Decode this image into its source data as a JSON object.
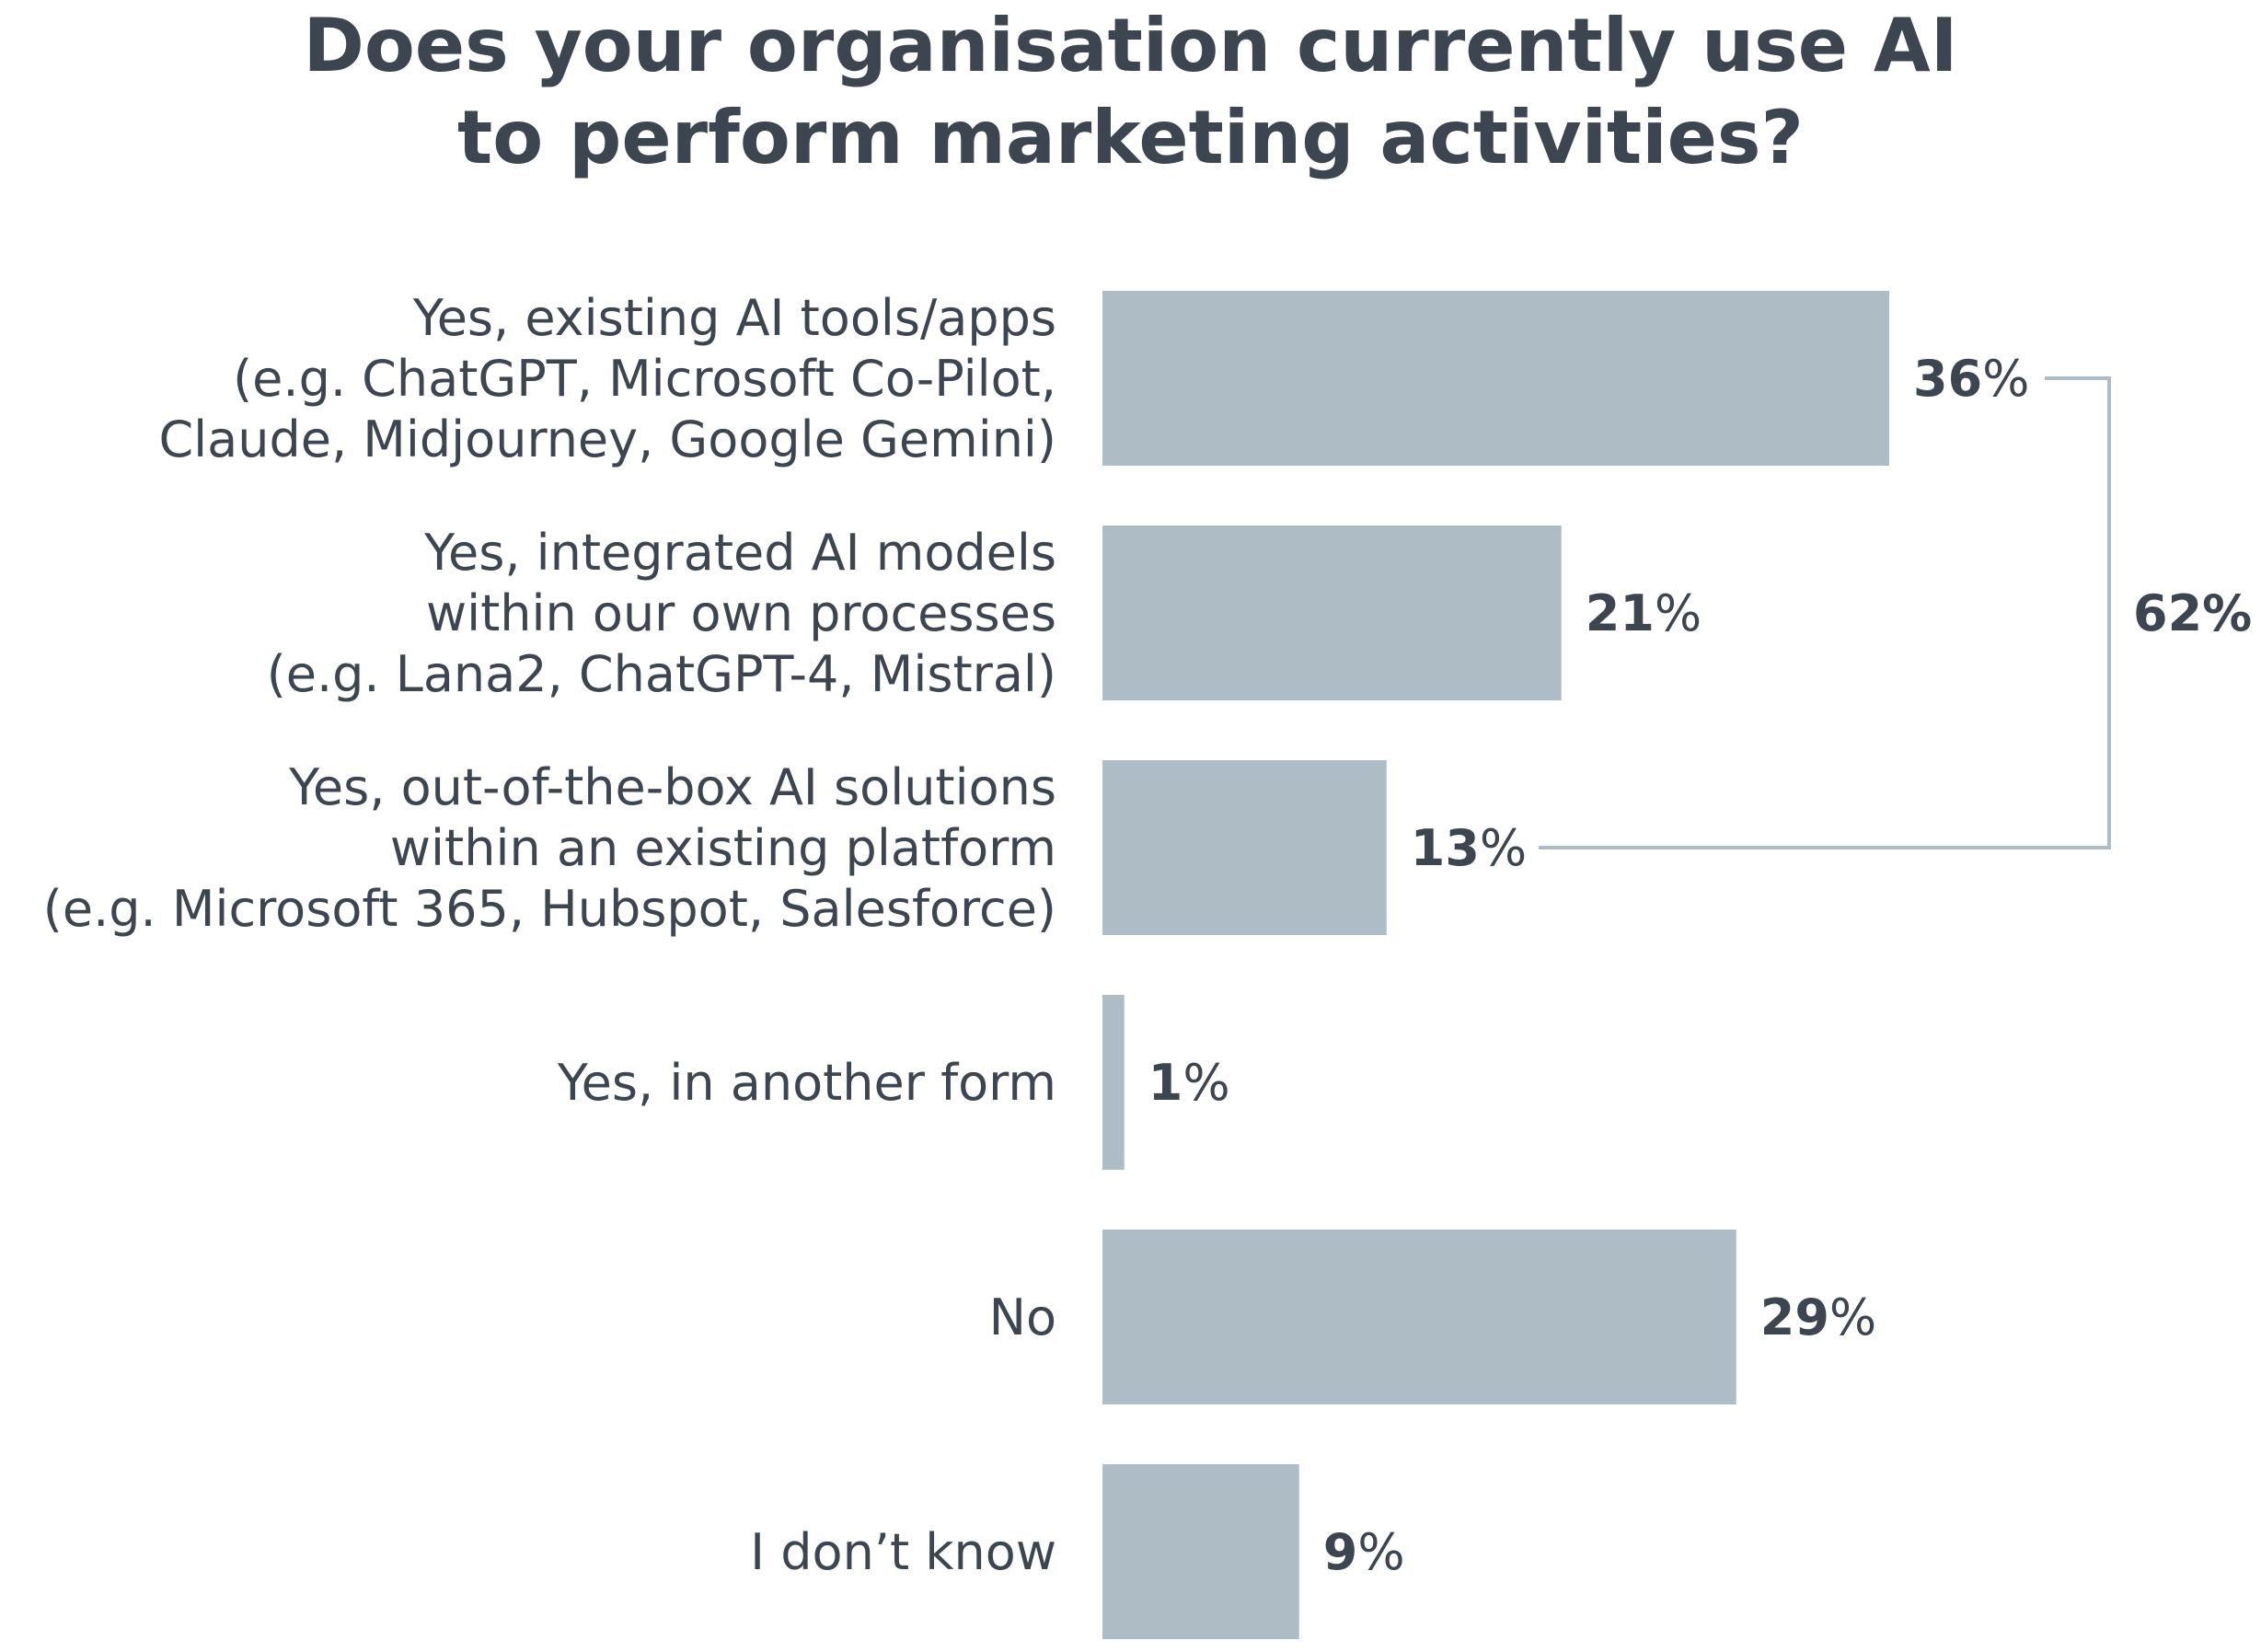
{
  "chart_data": {
    "type": "bar",
    "orientation": "horizontal",
    "title_lines": [
      "Does your organisation currently use AI",
      "to perform marketing activities?"
    ],
    "categories": [
      [
        "Yes, existing AI tools/apps",
        "(e.g. ChatGPT, Microsoft Co-Pilot,",
        "Claude, Midjourney, Google Gemini)"
      ],
      [
        "Yes, integrated AI models",
        "within our own processes",
        "(e.g. Lana2, ChatGPT-4, Mistral)"
      ],
      [
        "Yes, out-of-the-box AI solutions",
        "within an existing platform",
        "(e.g. Microsoft 365, Hubspot, Salesforce)"
      ],
      [
        "Yes, in another form"
      ],
      [
        "No"
      ],
      [
        "I don’t know"
      ]
    ],
    "values": [
      36,
      21,
      13,
      1,
      29,
      9
    ],
    "value_suffix": "%",
    "bracket": {
      "from_index": 0,
      "to_index": 2,
      "label": "62%"
    },
    "colors": {
      "bar": "#aebcc6",
      "text": "#3d4650",
      "bracket": "#aebcc6"
    }
  }
}
